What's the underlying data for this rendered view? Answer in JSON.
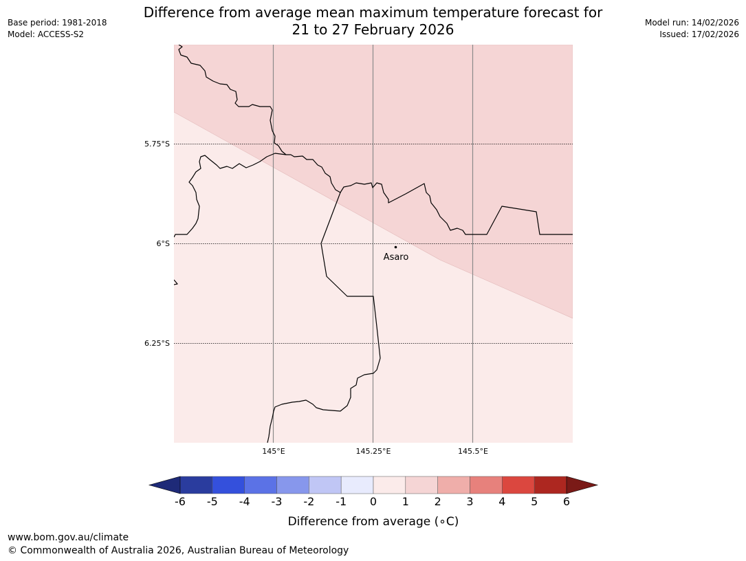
{
  "header": {
    "title_line1": "Difference from average mean maximum temperature forecast for",
    "title_line2": "21 to 27 February 2026",
    "base_period": "Base period: 1981-2018",
    "model": "Model: ACCESS-S2",
    "model_run": "Model run: 14/02/2026",
    "issued": "Issued: 17/02/2026"
  },
  "map": {
    "longitude_labels": [
      "145°E",
      "145.25°E",
      "145.5°E"
    ],
    "latitude_labels": [
      "5.75°S",
      "6°S",
      "6.25°S"
    ],
    "place": {
      "name": "Asaro"
    },
    "zones": [
      {
        "range": "1 to 2",
        "color": "#f5d5d5"
      },
      {
        "range": "0 to 1",
        "color": "#fbebea"
      }
    ]
  },
  "colorbar": {
    "ticks": [
      "-6",
      "-5",
      "-4",
      "-3",
      "-2",
      "-1",
      "0",
      "1",
      "2",
      "3",
      "4",
      "5",
      "6"
    ],
    "colors": [
      "#2a3c9e",
      "#3450dc",
      "#5b72e6",
      "#8797ec",
      "#c0c6f5",
      "#e8ebfd",
      "#fbebea",
      "#f5d5d5",
      "#efaeaa",
      "#e7817c",
      "#db473f",
      "#ad2720"
    ],
    "under_color": "#1e2a78",
    "over_color": "#7a1a17",
    "label": "Difference from average (∘C)"
  },
  "footer": {
    "url": "www.bom.gov.au/climate",
    "copyright": "© Commonwealth of Australia 2026, Australian Bureau of Meteorology"
  }
}
